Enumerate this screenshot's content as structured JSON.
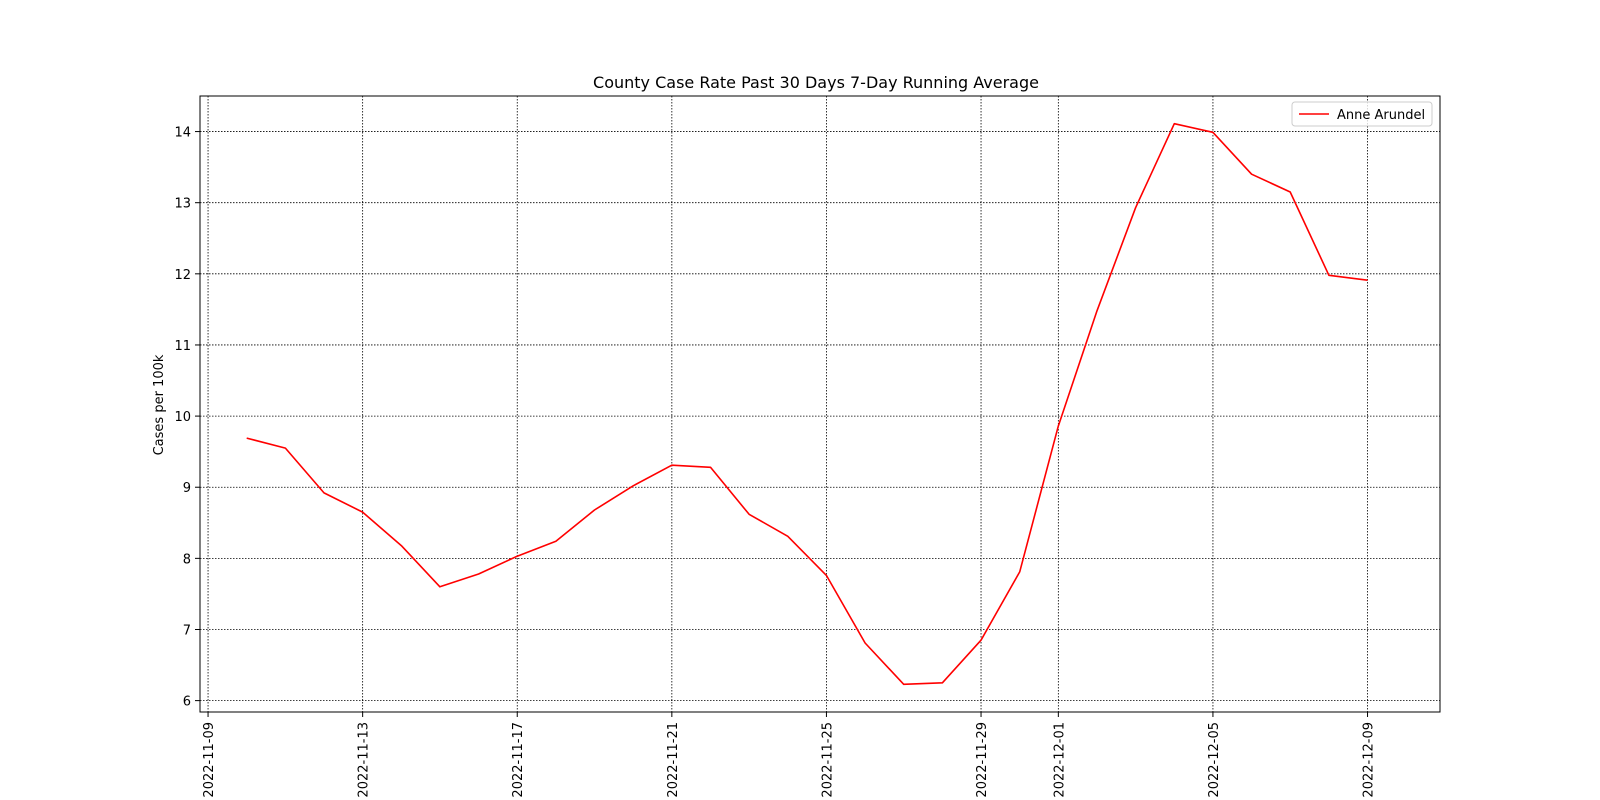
{
  "chart_data": {
    "type": "line",
    "title": "County Case Rate  Past 30 Days 7-Day Running Average",
    "xlabel": "",
    "ylabel": "Cases per 100k",
    "x_range": [
      "2022-11-08T19:00",
      "2022-12-10T21:00"
    ],
    "ylim": [
      5.84,
      14.5
    ],
    "x_ticks": [
      "2022-11-09",
      "2022-11-13",
      "2022-11-17",
      "2022-11-21",
      "2022-11-25",
      "2022-11-29",
      "2022-12-01",
      "2022-12-05",
      "2022-12-09"
    ],
    "y_ticks": [
      6,
      7,
      8,
      9,
      10,
      11,
      12,
      13,
      14
    ],
    "grid": true,
    "legend": "top-right",
    "series": [
      {
        "name": "Anne Arundel",
        "color": "#ff0000",
        "x": [
          "2022-11-10",
          "2022-11-11",
          "2022-11-12",
          "2022-11-13",
          "2022-11-14",
          "2022-11-15",
          "2022-11-16",
          "2022-11-17",
          "2022-11-18",
          "2022-11-19",
          "2022-11-20",
          "2022-11-21",
          "2022-11-22",
          "2022-11-23",
          "2022-11-24",
          "2022-11-25",
          "2022-11-26",
          "2022-11-27",
          "2022-11-28",
          "2022-11-29",
          "2022-11-30",
          "2022-12-01",
          "2022-12-02",
          "2022-12-03",
          "2022-12-04",
          "2022-12-05",
          "2022-12-06",
          "2022-12-07",
          "2022-12-08",
          "2022-12-09"
        ],
        "values": [
          9.69,
          9.55,
          8.92,
          8.65,
          8.18,
          7.6,
          7.78,
          8.03,
          8.24,
          8.68,
          9.02,
          9.31,
          9.28,
          8.62,
          8.31,
          7.76,
          6.81,
          6.23,
          6.25,
          6.85,
          7.81,
          9.86,
          11.48,
          12.93,
          14.11,
          13.99,
          13.4,
          13.15,
          11.98,
          11.91
        ]
      }
    ]
  }
}
